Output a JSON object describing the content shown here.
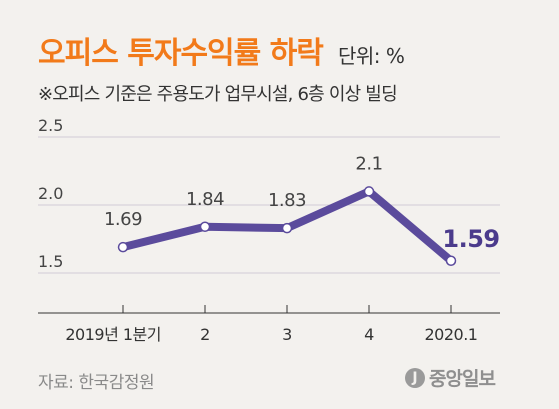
{
  "header": {
    "title": "오피스 투자수익률 하락",
    "unit": "단위: %",
    "subtitle": "※오피스 기준은 주용도가 업무시설, 6층 이상 빌딩"
  },
  "footer": {
    "source": "자료: 한국감정원",
    "logo_mark": "J",
    "logo_text": "중앙일보"
  },
  "colors": {
    "line": "#5b4b9c",
    "title": "#f27a1a",
    "gridline": "#d0ccd6",
    "highlight_label": "#4b3b8c",
    "marker_fill": "#ffffff"
  },
  "chart_data": {
    "type": "line",
    "categories": [
      "2019년 1분기",
      "2",
      "3",
      "4",
      "2020.1"
    ],
    "series": [
      {
        "values": [
          1.69,
          1.84,
          1.83,
          2.1,
          1.59
        ]
      }
    ],
    "data_labels": [
      "1.69",
      "1.84",
      "1.83",
      "2.1",
      "1.59"
    ],
    "y_ticks": [
      "1.5",
      "2.0",
      "2.5"
    ],
    "ylim": [
      1.5,
      2.5
    ],
    "grid": true,
    "title": "오피스 투자수익률 하락",
    "xlabel": "",
    "ylabel": ""
  }
}
